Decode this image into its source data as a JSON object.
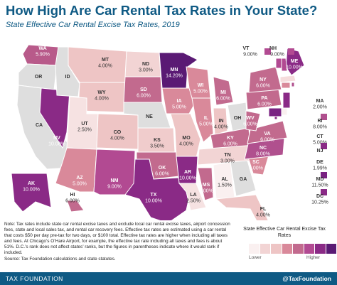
{
  "title": "How High Are Car Rental Tax Rates in Your State?",
  "subtitle": "State Effective Car Rental Excise Tax Rates, 2019",
  "states": [
    {
      "abbr": "WA",
      "rate": "5.90%",
      "color": "#b85a8a",
      "light": true
    },
    {
      "abbr": "OR",
      "rate": "",
      "color": "#dedede",
      "light": false
    },
    {
      "abbr": "CA",
      "rate": "",
      "color": "#dedede",
      "light": false
    },
    {
      "abbr": "NV",
      "rate": "10.00%",
      "color": "#8a2a86",
      "light": true
    },
    {
      "abbr": "ID",
      "rate": "",
      "color": "#dedede",
      "light": false
    },
    {
      "abbr": "MT",
      "rate": "4.00%",
      "color": "#eec5c5",
      "light": false
    },
    {
      "abbr": "WY",
      "rate": "4.00%",
      "color": "#eec5c5",
      "light": false
    },
    {
      "abbr": "UT",
      "rate": "2.50%",
      "color": "#f6e2e2",
      "light": false
    },
    {
      "abbr": "AZ",
      "rate": "5.00%",
      "color": "#d9899a",
      "light": true
    },
    {
      "abbr": "CO",
      "rate": "4.00%",
      "color": "#eec5c5",
      "light": false
    },
    {
      "abbr": "NM",
      "rate": "9.00%",
      "color": "#b24a92",
      "light": true
    },
    {
      "abbr": "ND",
      "rate": "3.00%",
      "color": "#f2d4d4",
      "light": false
    },
    {
      "abbr": "SD",
      "rate": "6.00%",
      "color": "#c26a8e",
      "light": true
    },
    {
      "abbr": "NE",
      "rate": "",
      "color": "#dedede",
      "light": false
    },
    {
      "abbr": "KS",
      "rate": "3.50%",
      "color": "#f0cccc",
      "light": false
    },
    {
      "abbr": "OK",
      "rate": "6.00%",
      "color": "#c26a8e",
      "light": true
    },
    {
      "abbr": "TX",
      "rate": "10.00%",
      "color": "#8a2a86",
      "light": true
    },
    {
      "abbr": "MN",
      "rate": "14.20%",
      "color": "#5a1a74",
      "light": true
    },
    {
      "abbr": "IA",
      "rate": "5.00%",
      "color": "#d9899a",
      "light": true
    },
    {
      "abbr": "MO",
      "rate": "4.00%",
      "color": "#eec5c5",
      "light": false
    },
    {
      "abbr": "AR",
      "rate": "10.00%",
      "color": "#8a2a86",
      "light": true
    },
    {
      "abbr": "LA",
      "rate": "2.50%",
      "color": "#f6e2e2",
      "light": false
    },
    {
      "abbr": "WI",
      "rate": "5.00%",
      "color": "#d9899a",
      "light": true
    },
    {
      "abbr": "IL",
      "rate": "5.00%",
      "color": "#d9899a",
      "light": true
    },
    {
      "abbr": "MS",
      "rate": "6.00%",
      "color": "#c26a8e",
      "light": true
    },
    {
      "abbr": "MI",
      "rate": "6.00%",
      "color": "#c26a8e",
      "light": true
    },
    {
      "abbr": "IN",
      "rate": "4.00%",
      "color": "#eec5c5",
      "light": false
    },
    {
      "abbr": "OH",
      "rate": "",
      "color": "#dedede",
      "light": false
    },
    {
      "abbr": "KY",
      "rate": "6.00%",
      "color": "#c26a8e",
      "light": true
    },
    {
      "abbr": "TN",
      "rate": "3.00%",
      "color": "#f2d4d4",
      "light": false
    },
    {
      "abbr": "AL",
      "rate": "1.50%",
      "color": "#faf0f0",
      "light": false
    },
    {
      "abbr": "GA",
      "rate": "",
      "color": "#dedede",
      "light": false
    },
    {
      "abbr": "FL",
      "rate": "4.00%",
      "color": "#eec5c5",
      "light": false
    },
    {
      "abbr": "SC",
      "rate": "5.00%",
      "color": "#d9899a",
      "light": true
    },
    {
      "abbr": "NC",
      "rate": "8.00%",
      "color": "#b0508e",
      "light": true
    },
    {
      "abbr": "VA",
      "rate": "6.00%",
      "color": "#c26a8e",
      "light": true
    },
    {
      "abbr": "WV",
      "rate": "6.00%",
      "color": "#c26a8e",
      "light": true
    },
    {
      "abbr": "PA",
      "rate": "6.00%",
      "color": "#c26a8e",
      "light": true
    },
    {
      "abbr": "NY",
      "rate": "6.00%",
      "color": "#c26a8e",
      "light": true
    },
    {
      "abbr": "ME",
      "rate": "10.00%",
      "color": "#8a2a86",
      "light": true
    },
    {
      "abbr": "VT",
      "rate": "9.00%",
      "color": "#b24a92",
      "light": false
    },
    {
      "abbr": "NH",
      "rate": "9.00%",
      "color": "#b24a92",
      "light": false
    },
    {
      "abbr": "MA",
      "rate": "2.00%",
      "color": "#f5dcdc",
      "light": false
    },
    {
      "abbr": "RI",
      "rate": "8.00%",
      "color": "#b0508e",
      "light": false
    },
    {
      "abbr": "CT",
      "rate": "5.00%",
      "color": "#d9899a",
      "light": false
    },
    {
      "abbr": "NJ",
      "rate": "",
      "color": "#8a2a86",
      "light": false
    },
    {
      "abbr": "DE",
      "rate": "1.99%",
      "color": "#faf0f0",
      "light": false
    },
    {
      "abbr": "MD",
      "rate": "11.50%",
      "color": "#7a2282",
      "light": false
    },
    {
      "abbr": "DC",
      "rate": "10.25%",
      "color": "#8a2a86",
      "light": false
    },
    {
      "abbr": "AK",
      "rate": "10.00%",
      "color": "#8a2a86",
      "light": true
    },
    {
      "abbr": "HI",
      "rate": "6.00%",
      "color": "#c26a8e",
      "light": false
    }
  ],
  "note": "Note: Tax rates include state car rental excise taxes and exclude local car rental excise taxes, airport concession fees, state and local sales tax, and rental car recovery fees. Effective tax rates are estimated using a car rental that costs $50 per day pre-tax for two days, or $100 total. Effective tax rates are higher when including all taxes and fees. At Chicago’s O’Hare Airport, for example, the effective tax rate including all taxes and fees is about 51%. D.C.’s rank does not affect states’ ranks, but the figures in parentheses indicate where it would rank if included.",
  "source": "Source: Tax Foundation calculations and state statutes.",
  "legend": {
    "title": "State Effective Car Rental Excise Tax Rates",
    "low": "Lower",
    "high": "Higher",
    "colors": [
      "#faf0f0",
      "#f2d4d4",
      "#eec5c5",
      "#d9899a",
      "#c26a8e",
      "#b24a92",
      "#8a2a86",
      "#5a1a74"
    ]
  },
  "footer": {
    "left": "TAX FOUNDATION",
    "right": "@TaxFoundation"
  }
}
